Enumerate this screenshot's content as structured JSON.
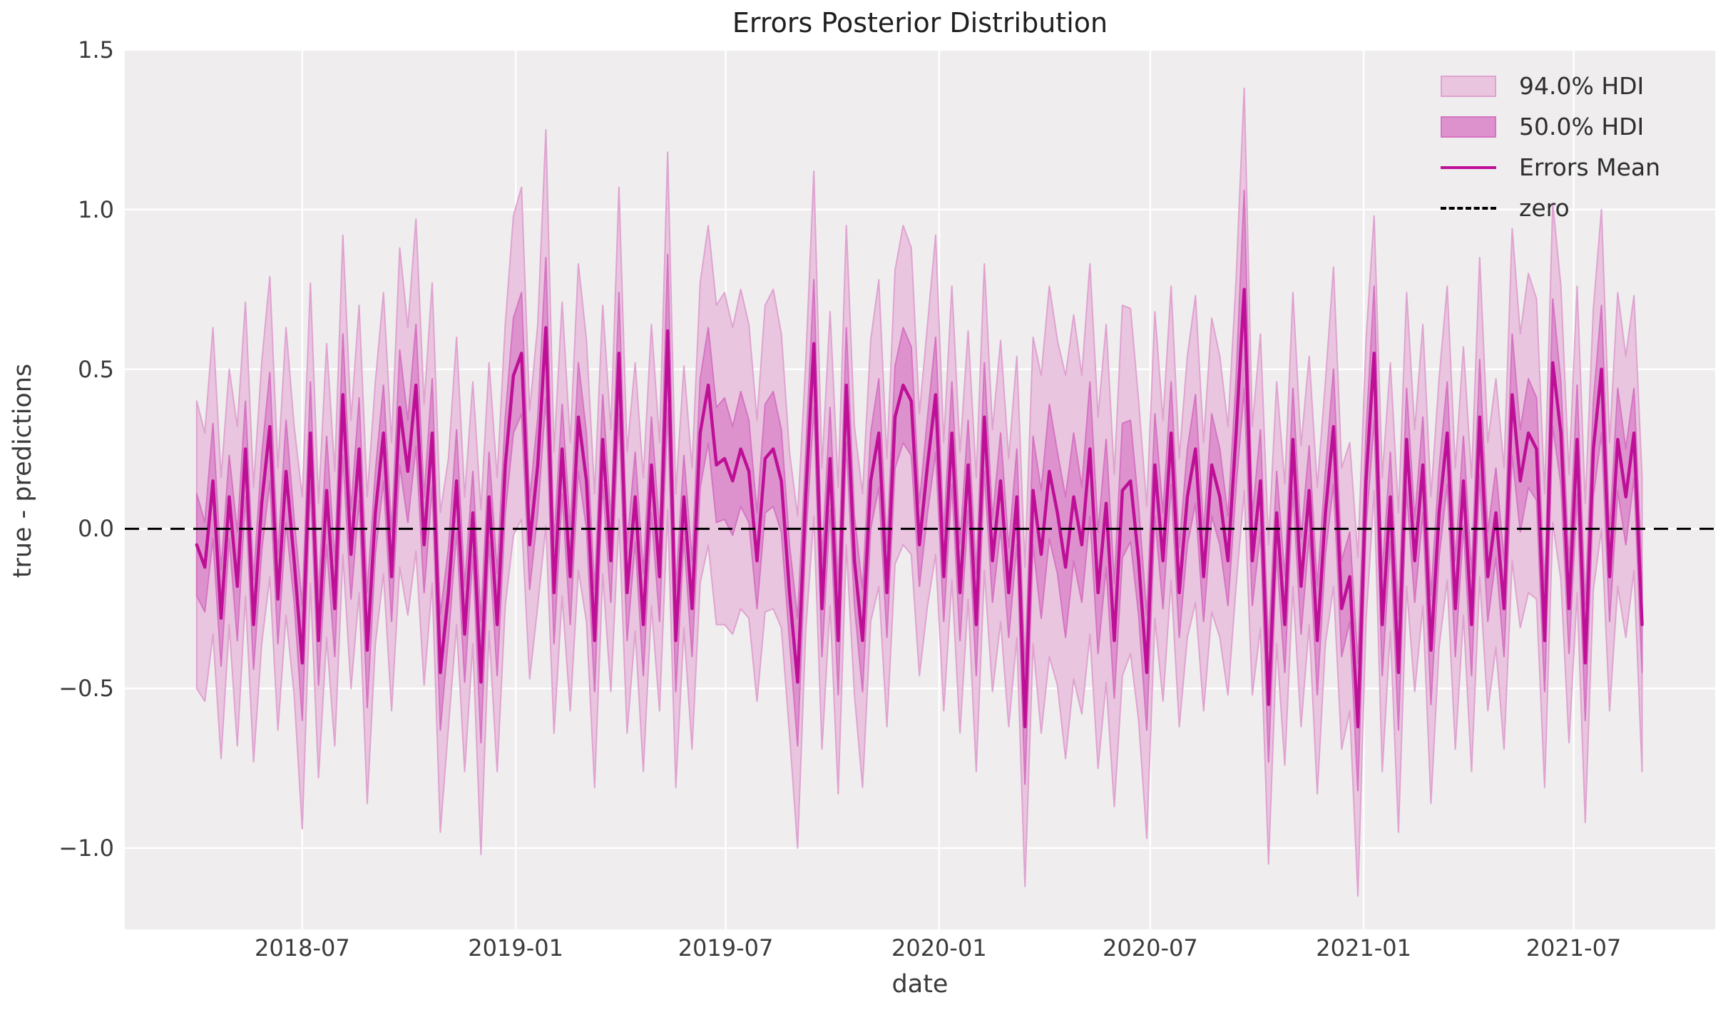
{
  "figure": {
    "title": "Errors Posterior Distribution",
    "xlabel": "date",
    "ylabel": "true - predictions"
  },
  "chart_data": {
    "type": "line",
    "subtype": "posterior-mean-with-hdi-bands",
    "title": "Errors Posterior Distribution",
    "xlabel": "date",
    "ylabel": "true - predictions",
    "grid": true,
    "legend_position": "upper right",
    "x_start_date": "2018-04-01",
    "x_step_days": 7,
    "n_points": 179,
    "xlim_days": [
      -62,
      1309
    ],
    "ylim": [
      -1.2547,
      1.5
    ],
    "x_ticks": [
      {
        "label": "2018-07",
        "day": 91
      },
      {
        "label": "2019-01",
        "day": 275
      },
      {
        "label": "2019-07",
        "day": 456
      },
      {
        "label": "2020-01",
        "day": 640
      },
      {
        "label": "2020-07",
        "day": 822
      },
      {
        "label": "2021-01",
        "day": 1006
      },
      {
        "label": "2021-07",
        "day": 1187
      }
    ],
    "y_ticks": [
      {
        "label": "1.5",
        "value": 1.5
      },
      {
        "label": "1.0",
        "value": 1.0
      },
      {
        "label": "0.5",
        "value": 0.5
      },
      {
        "label": "0.0",
        "value": 0.0
      },
      {
        "label": "−0.5",
        "value": -0.5
      },
      {
        "label": "−1.0",
        "value": -1.0
      }
    ],
    "zero_line": 0.0,
    "legend": [
      {
        "label": "94.0% HDI",
        "type": "band",
        "color_key": "band94"
      },
      {
        "label": "50.0% HDI",
        "type": "band",
        "color_key": "band50"
      },
      {
        "label": "Errors Mean",
        "type": "line",
        "color_key": "mean"
      },
      {
        "label": "zero",
        "type": "dashed",
        "color_key": "zero"
      }
    ],
    "colors": {
      "plot_bg": "#EFEDEE",
      "grid": "#FFFFFF",
      "band94": "#E9C5DF",
      "band94_edge": "#DFA3D0",
      "band50": "#DD92CE",
      "band50_edge": "#D574C2",
      "mean": "#BE1097",
      "zero": "#000000",
      "title_text": "#1f1f1f",
      "tick_text": "#3b3b3b"
    },
    "series": {
      "mean": [
        -0.05,
        -0.12,
        0.15,
        -0.28,
        0.1,
        -0.18,
        0.25,
        -0.3,
        0.08,
        0.32,
        -0.22,
        0.18,
        -0.1,
        -0.42,
        0.3,
        -0.35,
        0.12,
        -0.25,
        0.42,
        -0.08,
        0.25,
        -0.38,
        0.05,
        0.3,
        -0.15,
        0.38,
        0.18,
        0.45,
        -0.05,
        0.3,
        -0.45,
        -0.2,
        0.15,
        -0.33,
        0.05,
        -0.48,
        0.1,
        -0.3,
        0.2,
        0.48,
        0.55,
        -0.05,
        0.2,
        0.63,
        -0.2,
        0.25,
        -0.15,
        0.35,
        0.15,
        -0.35,
        0.28,
        -0.1,
        0.55,
        -0.2,
        0.1,
        -0.3,
        0.2,
        -0.15,
        0.62,
        -0.35,
        0.1,
        -0.25,
        0.3,
        0.45,
        0.2,
        0.22,
        0.15,
        0.25,
        0.18,
        -0.1,
        0.22,
        0.25,
        0.15,
        -0.2,
        -0.48,
        0.1,
        0.58,
        -0.25,
        0.22,
        -0.35,
        0.45,
        -0.1,
        -0.35,
        0.15,
        0.3,
        -0.2,
        0.35,
        0.45,
        0.4,
        -0.05,
        0.2,
        0.42,
        -0.15,
        0.3,
        -0.2,
        0.2,
        -0.3,
        0.35,
        -0.1,
        0.15,
        -0.2,
        0.1,
        -0.62,
        0.12,
        -0.08,
        0.18,
        0.05,
        -0.12,
        0.1,
        -0.05,
        0.25,
        -0.2,
        0.08,
        -0.35,
        0.12,
        0.15,
        -0.1,
        -0.45,
        0.2,
        -0.1,
        0.3,
        -0.2,
        0.1,
        0.25,
        -0.15,
        0.2,
        0.1,
        -0.1,
        0.3,
        0.75,
        -0.1,
        0.15,
        -0.55,
        0.05,
        -0.3,
        0.28,
        -0.18,
        0.12,
        -0.35,
        0.05,
        0.32,
        -0.25,
        -0.15,
        -0.62,
        0.15,
        0.55,
        -0.3,
        0.1,
        -0.45,
        0.28,
        -0.1,
        0.2,
        -0.38,
        0.05,
        0.3,
        -0.25,
        0.15,
        -0.3,
        0.35,
        -0.15,
        0.05,
        -0.25,
        0.42,
        0.15,
        0.3,
        0.25,
        -0.35,
        0.52,
        0.3,
        -0.25,
        0.28,
        -0.42,
        0.25,
        0.5,
        -0.15,
        0.28,
        0.1,
        0.3,
        -0.3
      ],
      "hdi50_halfwidth": [
        0.16,
        0.14,
        0.18,
        0.15,
        0.13,
        0.17,
        0.15,
        0.14,
        0.15,
        0.17,
        0.14,
        0.16,
        0.13,
        0.18,
        0.16,
        0.14,
        0.17,
        0.15,
        0.19,
        0.14,
        0.16,
        0.18,
        0.13,
        0.15,
        0.14,
        0.18,
        0.16,
        0.19,
        0.15,
        0.17,
        0.18,
        0.14,
        0.16,
        0.15,
        0.13,
        0.19,
        0.14,
        0.16,
        0.15,
        0.18,
        0.19,
        0.14,
        0.15,
        0.22,
        0.16,
        0.14,
        0.15,
        0.17,
        0.15,
        0.16,
        0.14,
        0.13,
        0.19,
        0.15,
        0.14,
        0.16,
        0.15,
        0.14,
        0.24,
        0.16,
        0.13,
        0.15,
        0.17,
        0.18,
        0.18,
        0.19,
        0.17,
        0.18,
        0.16,
        0.15,
        0.17,
        0.18,
        0.16,
        0.15,
        0.2,
        0.14,
        0.2,
        0.15,
        0.16,
        0.17,
        0.18,
        0.14,
        0.16,
        0.15,
        0.17,
        0.14,
        0.16,
        0.18,
        0.17,
        0.13,
        0.15,
        0.18,
        0.14,
        0.16,
        0.15,
        0.14,
        0.16,
        0.17,
        0.13,
        0.15,
        0.14,
        0.15,
        0.18,
        0.17,
        0.2,
        0.21,
        0.19,
        0.22,
        0.2,
        0.18,
        0.21,
        0.19,
        0.2,
        0.18,
        0.21,
        0.19,
        0.17,
        0.18,
        0.16,
        0.15,
        0.16,
        0.14,
        0.15,
        0.17,
        0.14,
        0.16,
        0.15,
        0.14,
        0.17,
        0.31,
        0.14,
        0.16,
        0.18,
        0.13,
        0.15,
        0.16,
        0.15,
        0.14,
        0.17,
        0.13,
        0.18,
        0.15,
        0.14,
        0.2,
        0.15,
        0.21,
        0.16,
        0.14,
        0.18,
        0.16,
        0.13,
        0.15,
        0.17,
        0.14,
        0.16,
        0.15,
        0.14,
        0.16,
        0.18,
        0.14,
        0.14,
        0.15,
        0.19,
        0.16,
        0.17,
        0.16,
        0.16,
        0.2,
        0.16,
        0.14,
        0.17,
        0.18,
        0.15,
        0.2,
        0.14,
        0.16,
        0.15,
        0.14,
        0.15
      ],
      "hdi94_halfwidth": [
        0.45,
        0.42,
        0.48,
        0.44,
        0.4,
        0.5,
        0.46,
        0.43,
        0.44,
        0.47,
        0.41,
        0.45,
        0.42,
        0.52,
        0.47,
        0.43,
        0.46,
        0.43,
        0.5,
        0.42,
        0.45,
        0.48,
        0.41,
        0.44,
        0.42,
        0.5,
        0.45,
        0.52,
        0.44,
        0.47,
        0.5,
        0.42,
        0.45,
        0.43,
        0.41,
        0.54,
        0.42,
        0.46,
        0.44,
        0.5,
        0.52,
        0.42,
        0.44,
        0.62,
        0.44,
        0.46,
        0.42,
        0.48,
        0.44,
        0.46,
        0.42,
        0.41,
        0.52,
        0.44,
        0.42,
        0.46,
        0.44,
        0.42,
        0.56,
        0.46,
        0.41,
        0.44,
        0.47,
        0.5,
        0.5,
        0.52,
        0.48,
        0.5,
        0.46,
        0.44,
        0.48,
        0.5,
        0.46,
        0.44,
        0.52,
        0.42,
        0.54,
        0.44,
        0.46,
        0.48,
        0.5,
        0.42,
        0.46,
        0.44,
        0.48,
        0.42,
        0.46,
        0.5,
        0.48,
        0.41,
        0.44,
        0.5,
        0.42,
        0.46,
        0.44,
        0.42,
        0.46,
        0.48,
        0.41,
        0.44,
        0.42,
        0.44,
        0.5,
        0.48,
        0.56,
        0.58,
        0.54,
        0.6,
        0.57,
        0.53,
        0.58,
        0.55,
        0.56,
        0.52,
        0.58,
        0.54,
        0.5,
        0.52,
        0.48,
        0.44,
        0.46,
        0.42,
        0.44,
        0.48,
        0.42,
        0.46,
        0.44,
        0.42,
        0.48,
        0.63,
        0.42,
        0.46,
        0.5,
        0.41,
        0.44,
        0.46,
        0.44,
        0.42,
        0.48,
        0.41,
        0.5,
        0.44,
        0.42,
        0.53,
        0.44,
        0.43,
        0.46,
        0.42,
        0.5,
        0.46,
        0.41,
        0.44,
        0.48,
        0.42,
        0.46,
        0.44,
        0.42,
        0.46,
        0.5,
        0.42,
        0.42,
        0.44,
        0.52,
        0.46,
        0.5,
        0.47,
        0.46,
        0.5,
        0.46,
        0.42,
        0.48,
        0.5,
        0.44,
        0.5,
        0.42,
        0.46,
        0.44,
        0.43,
        0.46
      ]
    }
  }
}
